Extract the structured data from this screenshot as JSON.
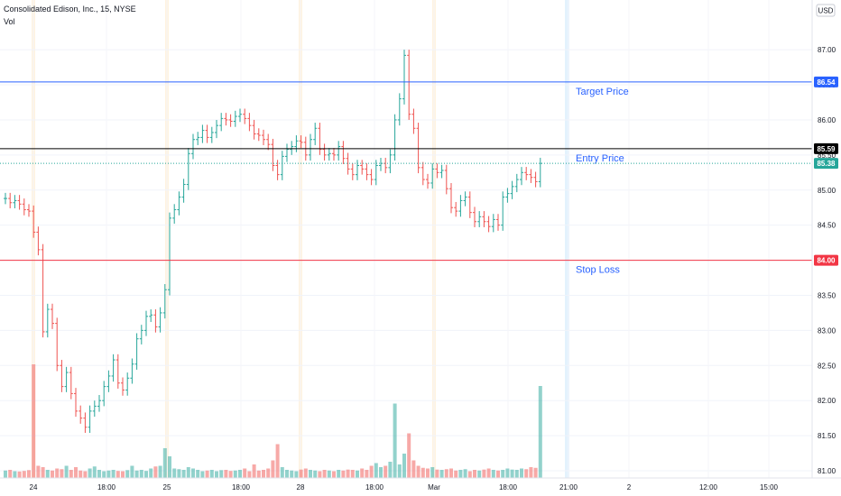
{
  "header": {
    "title": "Consolidated Edison, Inc., 15, NYSE",
    "volume_label": "Vol"
  },
  "currency_button": "USD",
  "colors": {
    "up": "#26a69a",
    "down": "#ef5350",
    "target": "#2962ff",
    "entry": "#000000",
    "stop": "#f23645",
    "session_highlight": "#fff3e0",
    "now_highlight": "#e3f2fd",
    "last_price_tag": "#26a69a"
  },
  "chart_data": {
    "type": "ohlc",
    "ylim": [
      81.0,
      87.4
    ],
    "y_ticks": [
      "81.00",
      "81.50",
      "82.00",
      "82.50",
      "83.00",
      "83.50",
      "84.00",
      "84.50",
      "85.00",
      "85.50",
      "86.00",
      "86.50",
      "87.00"
    ],
    "x_ticks": [
      "24",
      "18:00",
      "25",
      "18:00",
      "28",
      "18:00",
      "Mar",
      "18:00",
      "21:00",
      "2",
      "12:00",
      "15:00"
    ],
    "horizontal_lines": [
      {
        "name": "Target Price",
        "value": 86.54
      },
      {
        "name": "Entry Price",
        "value": 85.59
      },
      {
        "name": "Stop Loss",
        "value": 84.0
      }
    ],
    "price_tags": [
      {
        "value": "86.54",
        "kind": "target"
      },
      {
        "value": "85.59",
        "kind": "entry"
      },
      {
        "value": "85.38",
        "kind": "last"
      },
      {
        "value": "84.00",
        "kind": "stop"
      }
    ],
    "closes": [
      84.88,
      84.82,
      84.85,
      84.8,
      84.72,
      84.7,
      84.4,
      84.15,
      82.98,
      83.3,
      83.1,
      82.5,
      82.2,
      82.4,
      82.1,
      81.85,
      81.75,
      81.62,
      81.85,
      81.92,
      82.0,
      82.2,
      82.35,
      82.58,
      82.25,
      82.15,
      82.32,
      82.52,
      82.88,
      83.0,
      83.2,
      83.22,
      83.05,
      83.25,
      83.58,
      84.6,
      84.72,
      84.9,
      85.08,
      85.52,
      85.72,
      85.75,
      85.85,
      85.75,
      85.82,
      85.92,
      86.02,
      86.0,
      85.98,
      86.05,
      86.08,
      86.02,
      85.92,
      85.8,
      85.78,
      85.72,
      85.65,
      85.35,
      85.22,
      85.48,
      85.58,
      85.62,
      85.7,
      85.68,
      85.5,
      85.72,
      85.88,
      85.58,
      85.5,
      85.52,
      85.5,
      85.62,
      85.45,
      85.3,
      85.22,
      85.35,
      85.3,
      85.22,
      85.15,
      85.35,
      85.38,
      85.32,
      85.5,
      86.0,
      86.3,
      86.92,
      86.08,
      85.88,
      85.32,
      85.15,
      85.1,
      85.3,
      85.25,
      85.28,
      85.02,
      84.75,
      84.7,
      84.85,
      84.9,
      84.68,
      84.55,
      84.62,
      84.55,
      84.48,
      84.58,
      84.5,
      84.9,
      84.95,
      85.05,
      85.15,
      85.25,
      85.22,
      85.18,
      85.12,
      85.38
    ],
    "volumes": [
      0.55,
      0.6,
      0.5,
      0.48,
      0.52,
      0.58,
      8.4,
      0.9,
      0.8,
      0.6,
      0.55,
      0.7,
      0.65,
      0.9,
      0.6,
      0.8,
      0.55,
      0.5,
      0.7,
      0.85,
      0.6,
      0.5,
      0.55,
      0.6,
      0.52,
      0.5,
      0.58,
      0.9,
      0.55,
      0.6,
      0.52,
      0.7,
      0.85,
      0.9,
      2.2,
      1.6,
      0.7,
      0.65,
      0.6,
      0.8,
      0.7,
      0.6,
      0.5,
      0.55,
      0.6,
      0.5,
      0.58,
      0.6,
      0.52,
      0.55,
      0.6,
      0.7,
      0.5,
      1.0,
      0.55,
      0.6,
      0.7,
      1.3,
      2.5,
      0.8,
      0.6,
      0.55,
      0.5,
      0.62,
      0.7,
      0.6,
      0.55,
      0.5,
      0.6,
      0.55,
      0.5,
      0.6,
      0.55,
      0.62,
      0.6,
      0.55,
      0.7,
      0.6,
      0.9,
      1.1,
      0.8,
      0.9,
      1.2,
      5.5,
      1.0,
      1.8,
      3.3,
      1.3,
      0.9,
      0.75,
      0.7,
      0.8,
      0.62,
      0.6,
      0.65,
      0.7,
      0.55,
      0.6,
      0.65,
      0.5,
      0.6,
      0.55,
      0.62,
      0.7,
      0.6,
      0.55,
      0.6,
      0.7,
      0.62,
      0.6,
      0.7,
      0.65,
      0.8,
      0.75,
      6.8
    ]
  }
}
